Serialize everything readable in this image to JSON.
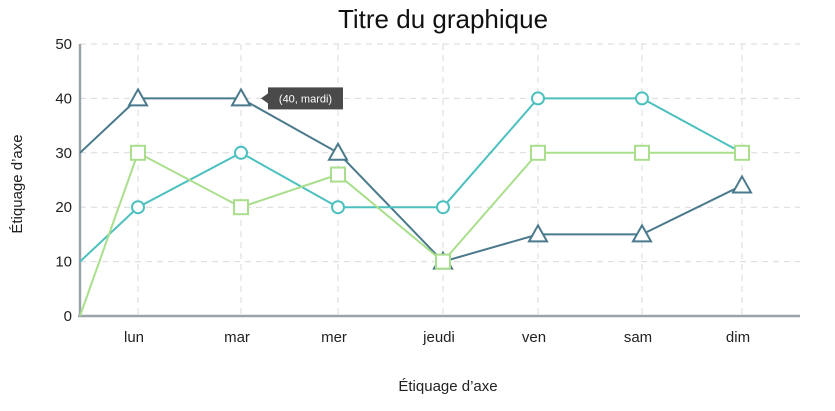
{
  "chart_data": {
    "type": "line",
    "title": "Titre du graphique",
    "xlabel": "Étiquage d’axe",
    "ylabel": "Étiquage d’axe",
    "categories": [
      "lun",
      "mar",
      "mer",
      "jeudi",
      "ven",
      "sam",
      "dim"
    ],
    "ylim": [
      0,
      50
    ],
    "yticks": [
      0,
      10,
      20,
      30,
      40,
      50
    ],
    "grid": true,
    "series": [
      {
        "color": "#4a7a8c",
        "marker": "triangle",
        "start": 30,
        "values": [
          40,
          40,
          30,
          10,
          15,
          15,
          24
        ]
      },
      {
        "color": "#4cc0bf",
        "marker": "circle",
        "start": 10,
        "values": [
          20,
          30,
          20,
          20,
          40,
          40,
          30
        ]
      },
      {
        "color": "#a9df8c",
        "marker": "square",
        "start": 0,
        "values": [
          30,
          20,
          26,
          10,
          30,
          30,
          30
        ]
      }
    ],
    "tooltip": {
      "text": "(40, mardi)",
      "series_index": 0,
      "category_index": 1
    }
  }
}
